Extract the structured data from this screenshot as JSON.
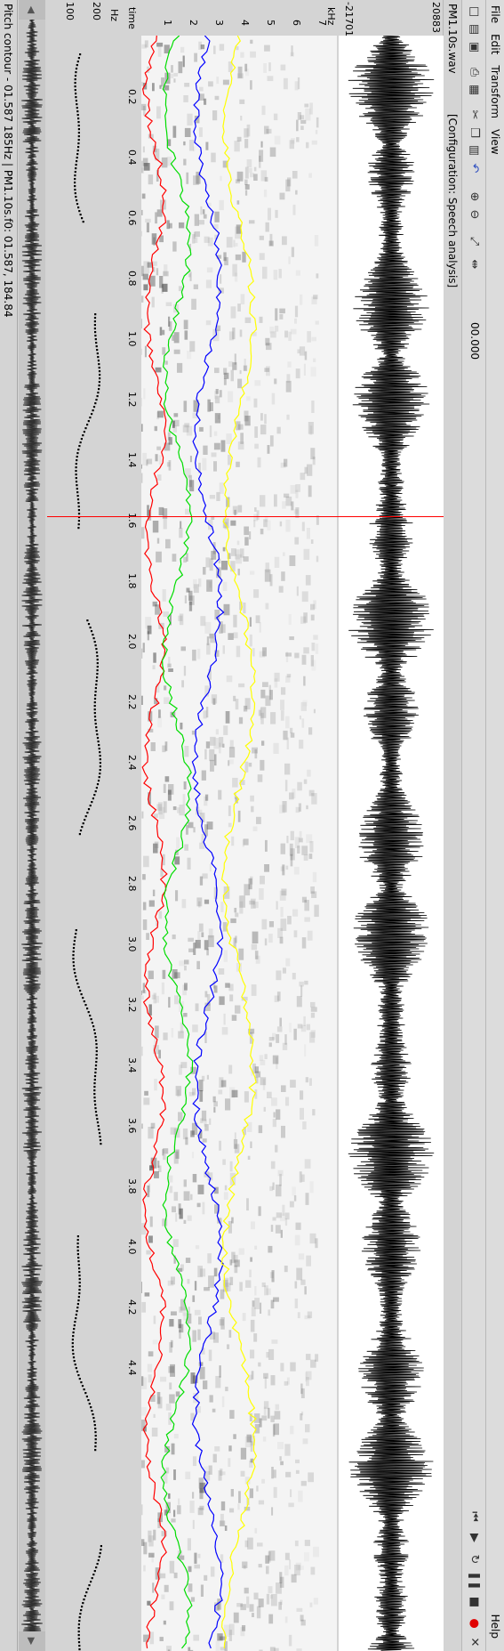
{
  "menu": {
    "file": "File",
    "edit": "Edit",
    "transform": "Transform",
    "view": "View",
    "help": "Help"
  },
  "toolbar": {
    "time": "00.000",
    "icons": [
      "new-file-icon",
      "open-file-icon",
      "save-icon",
      "print-icon",
      "properties-icon",
      "cut-icon",
      "copy-icon",
      "paste-icon",
      "undo-icon",
      "zoom-in-icon",
      "zoom-out-icon",
      "zoom-fit-icon",
      "zoom-selection-icon"
    ],
    "transport_icons": [
      "skip-start-icon",
      "play-icon",
      "loop-play-icon",
      "pause-icon",
      "stop-icon",
      "record-icon",
      "close-icon"
    ]
  },
  "info": {
    "filename": "PM1.10s.wav",
    "configuration": "[Configuration: Speech analysis]",
    "amp_max": "20883",
    "amp_min": "-21701"
  },
  "spectrogram": {
    "unit": "kHz",
    "ticks": [
      "1",
      "2",
      "3",
      "4",
      "5",
      "6",
      "7"
    ]
  },
  "time_axis": {
    "label": "time",
    "ticks": [
      "0.2",
      "0.4",
      "0.6",
      "0.8",
      "1.0",
      "1.2",
      "1.4",
      "1.6",
      "1.8",
      "2.0",
      "2.2",
      "2.4",
      "2.6",
      "2.8",
      "3.0",
      "3.2",
      "3.4",
      "3.6",
      "3.8",
      "4.0",
      "4.2",
      "4.4"
    ]
  },
  "pitch": {
    "unit": "Hz",
    "ticks": [
      "100",
      "200"
    ]
  },
  "cursor_time": 1.587,
  "colors": {
    "f1": "#ff0000",
    "f2": "#00dd00",
    "f3": "#0000ff",
    "f4": "#ffff00",
    "cursor": "#ff0000"
  },
  "status": "Pitch contour - 01.587 185Hz | PM1.10s.f0: 01.587, 184.84"
}
